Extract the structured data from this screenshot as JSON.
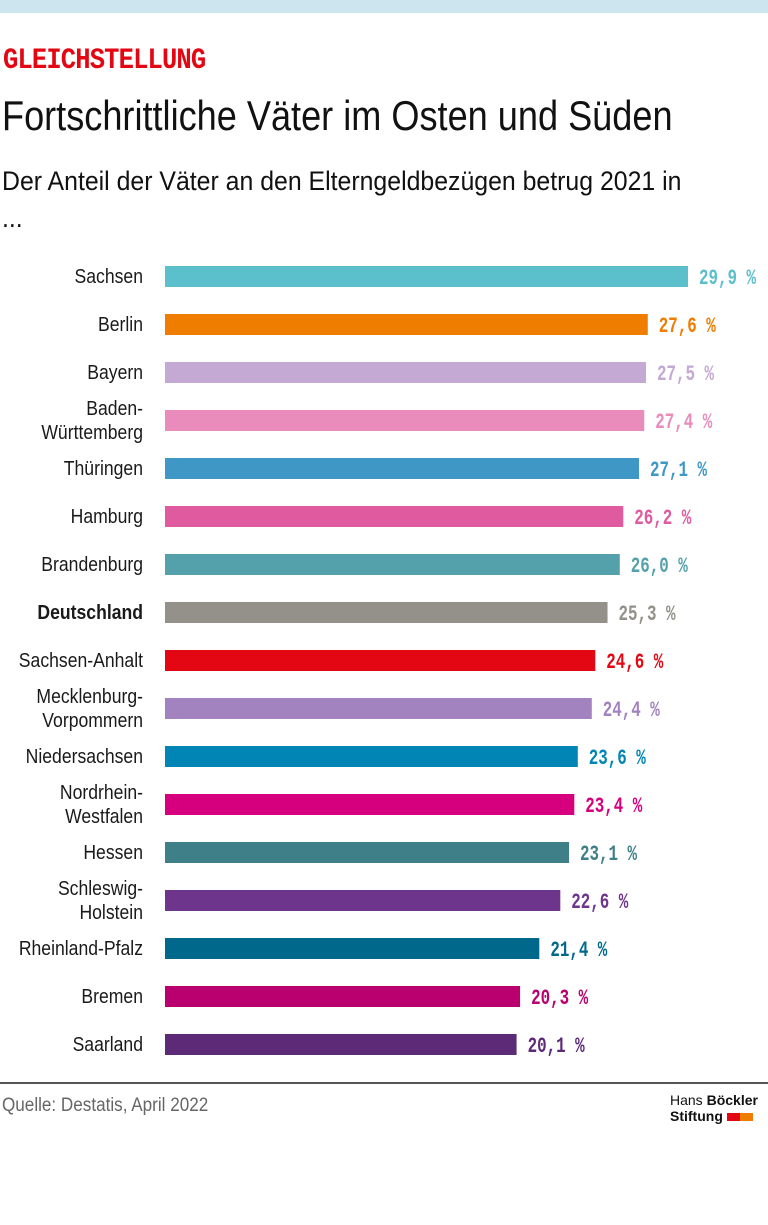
{
  "header": {
    "kicker": "GLEICHSTELLUNG",
    "title": "Fortschrittliche Väter im Osten und Süden",
    "subtitle": "Der Anteil der Väter an den Elterngeldbezügen betrug 2021 in ..."
  },
  "footer": {
    "source": "Quelle: Destatis, April 2022",
    "logo_line1_a": "Hans",
    "logo_line1_b": "Böckler",
    "logo_line2": "Stiftung",
    "logo_colors": [
      "#e30613",
      "#ee7d00"
    ]
  },
  "chart_data": {
    "type": "bar",
    "orientation": "horizontal",
    "unit": "%",
    "xlim": [
      0,
      29.9
    ],
    "grid": false,
    "categories": [
      {
        "name": "Sachsen",
        "lines": [
          "Sachsen"
        ],
        "value": 29.9,
        "label": "29,9 %",
        "color": "#5bbfcc"
      },
      {
        "name": "Berlin",
        "lines": [
          "Berlin"
        ],
        "value": 27.6,
        "label": "27,6 %",
        "color": "#ee7d00"
      },
      {
        "name": "Bayern",
        "lines": [
          "Bayern"
        ],
        "value": 27.5,
        "label": "27,5 %",
        "color": "#c3a9d4"
      },
      {
        "name": "Baden-Württemberg",
        "lines": [
          "Baden-",
          "Württemberg"
        ],
        "value": 27.4,
        "label": "27,4 %",
        "color": "#e98bbb"
      },
      {
        "name": "Thüringen",
        "lines": [
          "Thüringen"
        ],
        "value": 27.1,
        "label": "27,1 %",
        "color": "#3e97c4"
      },
      {
        "name": "Hamburg",
        "lines": [
          "Hamburg"
        ],
        "value": 26.2,
        "label": "26,2 %",
        "color": "#df5a9e"
      },
      {
        "name": "Brandenburg",
        "lines": [
          "Brandenburg"
        ],
        "value": 26.0,
        "label": "26,0 %",
        "color": "#55a1ab"
      },
      {
        "name": "Deutschland",
        "lines": [
          "Deutschland"
        ],
        "value": 25.3,
        "label": "25,3 %",
        "color": "#94918a",
        "highlight": true
      },
      {
        "name": "Sachsen-Anhalt",
        "lines": [
          "Sachsen-Anhalt"
        ],
        "value": 24.6,
        "label": "24,6 %",
        "color": "#e30613"
      },
      {
        "name": "Mecklenburg-Vorpommern",
        "lines": [
          "Mecklenburg-",
          "Vorpommern"
        ],
        "value": 24.4,
        "label": "24,4 %",
        "color": "#a283bf"
      },
      {
        "name": "Niedersachsen",
        "lines": [
          "Niedersachsen"
        ],
        "value": 23.6,
        "label": "23,6 %",
        "color": "#0085b5"
      },
      {
        "name": "Nordrhein-Westfalen",
        "lines": [
          "Nordrhein-",
          "Westfalen"
        ],
        "value": 23.4,
        "label": "23,4 %",
        "color": "#d6007e"
      },
      {
        "name": "Hessen",
        "lines": [
          "Hessen"
        ],
        "value": 23.1,
        "label": "23,1 %",
        "color": "#3f8088"
      },
      {
        "name": "Schleswig-Holstein",
        "lines": [
          "Schleswig-",
          "Holstein"
        ],
        "value": 22.6,
        "label": "22,6 %",
        "color": "#6e358c"
      },
      {
        "name": "Rheinland-Pfalz",
        "lines": [
          "Rheinland-Pfalz"
        ],
        "value": 21.4,
        "label": "21,4 %",
        "color": "#00698b"
      },
      {
        "name": "Bremen",
        "lines": [
          "Bremen"
        ],
        "value": 20.3,
        "label": "20,3 %",
        "color": "#b9006e"
      },
      {
        "name": "Saarland",
        "lines": [
          "Saarland"
        ],
        "value": 20.1,
        "label": "20,1 %",
        "color": "#5d2a78"
      }
    ]
  }
}
